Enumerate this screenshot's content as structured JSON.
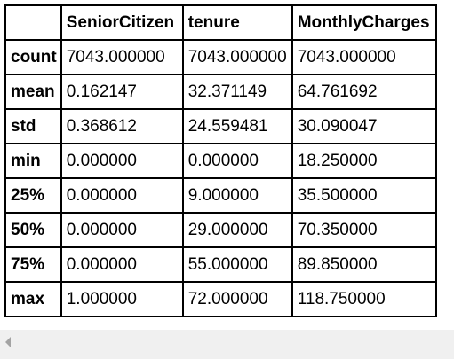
{
  "table": {
    "headers": [
      "",
      "SeniorCitizen",
      "tenure",
      "MonthlyCharges"
    ],
    "rows": [
      {
        "label": "count",
        "values": [
          "7043.000000",
          "7043.000000",
          "7043.000000"
        ]
      },
      {
        "label": "mean",
        "values": [
          "0.162147",
          "32.371149",
          "64.761692"
        ]
      },
      {
        "label": "std",
        "values": [
          "0.368612",
          "24.559481",
          "30.090047"
        ]
      },
      {
        "label": "min",
        "values": [
          "0.000000",
          "0.000000",
          "18.250000"
        ]
      },
      {
        "label": "25%",
        "values": [
          "0.000000",
          "9.000000",
          "35.500000"
        ]
      },
      {
        "label": "50%",
        "values": [
          "0.000000",
          "29.000000",
          "70.350000"
        ]
      },
      {
        "label": "75%",
        "values": [
          "0.000000",
          "55.000000",
          "89.850000"
        ]
      },
      {
        "label": "max",
        "values": [
          "1.000000",
          "72.000000",
          "118.750000"
        ]
      }
    ]
  },
  "scrollbar": {
    "left_arrow_icon": "triangle-left-icon"
  },
  "colors": {
    "border": "#000000",
    "scrollbar_track": "#f0f0f0",
    "scroll_arrow": "#a3a3a3"
  }
}
